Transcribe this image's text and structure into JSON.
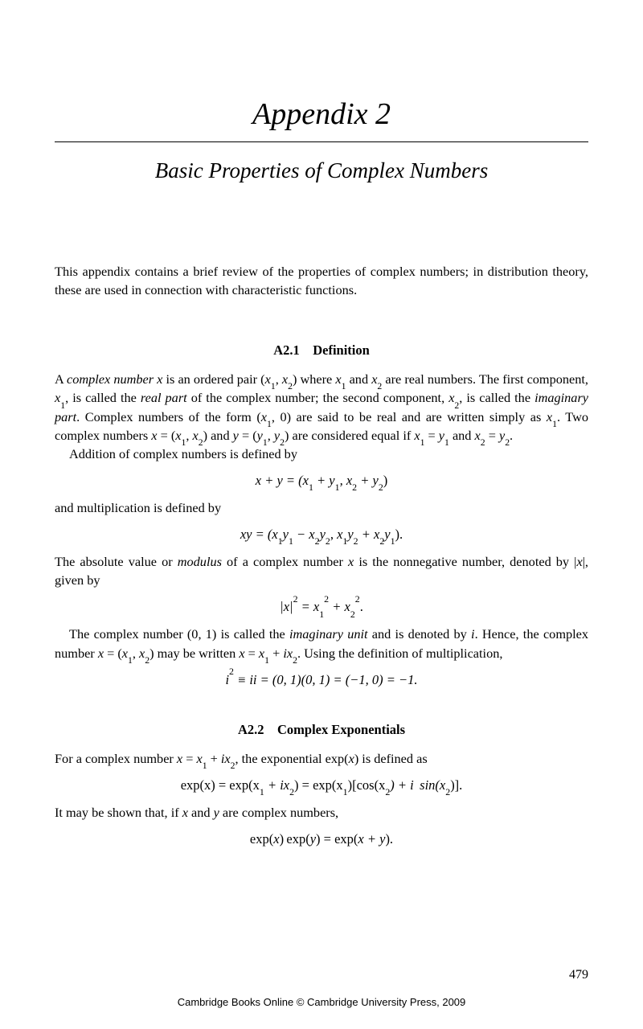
{
  "title": "Appendix 2",
  "subtitle": "Basic Properties of Complex Numbers",
  "intro": "This appendix contains a brief review of the properties of complex numbers; in distribution theory, these are used in connection with characteristic functions.",
  "section1": {
    "heading": "A2.1 Definition",
    "p1a": "A ",
    "p1_term1": "complex number x",
    "p1b": " is an ordered pair (",
    "p1c": ") where ",
    "p1d": " and ",
    "p1e": " are real numbers. The first component, ",
    "p1f": ", is called the ",
    "p1_term2": "real part",
    "p1g": " of the complex number; the second component, ",
    "p1h": ", is called the ",
    "p1_term3": "imaginary part",
    "p1i": ". Complex numbers of the form (",
    "p1j": ", 0) are said to be real and are written simply as ",
    "p1k": ". Two complex numbers ",
    "p1l": " and ",
    "p1m": " are considered equal if ",
    "p1n": " and ",
    "p1o": ".",
    "p2": "Addition of complex numbers is defined by",
    "eq1_pre": "x + y = (x",
    "eq1_mid1": " + y",
    "eq1_mid2": ", x",
    "eq1_mid3": " + y",
    "eq1_post": ")",
    "p3": "and multiplication is defined by",
    "eq2_a": "xy = (x",
    "eq2_b": "y",
    "eq2_c": " − x",
    "eq2_d": "y",
    "eq2_e": ", x",
    "eq2_f": "y",
    "eq2_g": " + x",
    "eq2_h": "y",
    "eq2_i": ").",
    "p4a": "The absolute value or ",
    "p4_term": "modulus",
    "p4b": " of a complex number ",
    "p4c": " is the nonnegative number, denoted by |",
    "p4d": "|, given by",
    "eq3_a": "|x|",
    "eq3_b": " = x",
    "eq3_c": " + x",
    "eq3_d": ".",
    "p5a": "The complex number (0, 1) is called the ",
    "p5_term": "imaginary unit",
    "p5b": " and is denoted by ",
    "p5c": ". Hence, the complex number ",
    "p5d": " may be written ",
    "p5e": ". Using the definition of multiplication,",
    "eq4": "i",
    "eq4b": " ≡ ii = (0, 1)(0, 1) = (−1, 0) = −1."
  },
  "section2": {
    "heading": "A2.2 Complex Exponentials",
    "p1a": "For a complex number ",
    "p1b": ", the exponential exp(",
    "p1c": ") is defined as",
    "eq1_a": "exp(x) = exp(x",
    "eq1_b": " + ix",
    "eq1_c": ") = exp(x",
    "eq1_d": ")[cos(x",
    "eq1_e": ") + i  sin(x",
    "eq1_f": ")].",
    "p2a": "It may be shown that, if ",
    "p2b": " and ",
    "p2c": " are complex numbers,",
    "eq2": "exp(x) exp(y) = exp(x + y)."
  },
  "page_number": "479",
  "footer": "Cambridge Books Online © Cambridge University Press, 2009"
}
